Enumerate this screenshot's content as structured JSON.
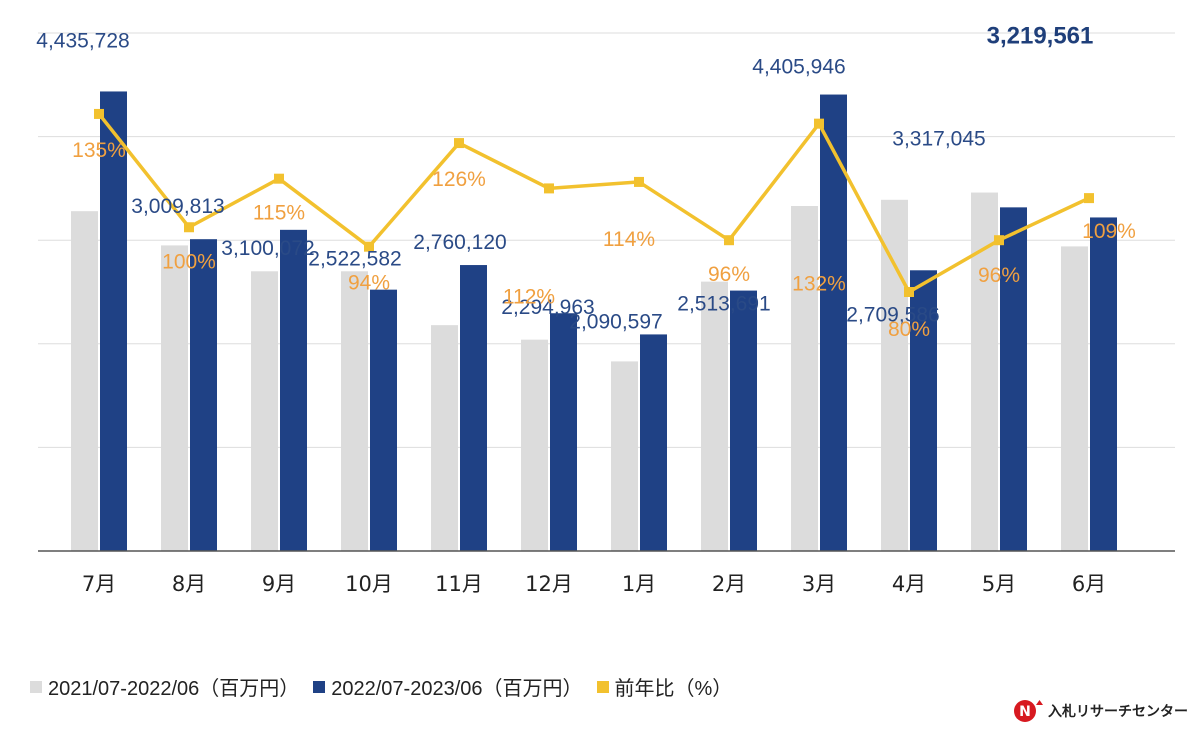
{
  "chart_data": {
    "type": "bar",
    "categories": [
      "7月",
      "8月",
      "9月",
      "10月",
      "11月",
      "12月",
      "1月",
      "2月",
      "3月",
      "4月",
      "5月",
      "6月"
    ],
    "series": [
      {
        "name": "2021/07-2022/06（百万円）",
        "color": "#dcdcdc",
        "values": [
          3280000,
          2950000,
          2700000,
          2700000,
          2180000,
          2040000,
          1830000,
          2600000,
          3330000,
          3390000,
          3460000,
          2940000
        ]
      },
      {
        "name": "2022/07-2023/06（百万円）",
        "color": "#1f4185",
        "values": [
          4435728,
          3009813,
          3100072,
          2522582,
          2760120,
          2294963,
          2090597,
          2513691,
          4405946,
          2709586,
          3317045,
          3219561
        ]
      },
      {
        "name": "前年比（%）",
        "color": "#f2c12e",
        "type": "line",
        "values": [
          135,
          100,
          115,
          94,
          126,
          112,
          114,
          96,
          132,
          80,
          96,
          109
        ]
      }
    ],
    "value_labels": [
      "4,435,728",
      "3,009,813",
      "3,100,072",
      "2,522,582",
      "2,760,120",
      "2,294,963",
      "2,090,597",
      "2,513,691",
      "4,405,946",
      "2,709,586",
      "3,317,045",
      "3,219,561"
    ],
    "pct_labels": [
      "135%",
      "100%",
      "115%",
      "94%",
      "126%",
      "112%",
      "114%",
      "96%",
      "132%",
      "80%",
      "96%",
      "109%"
    ],
    "ylim": [
      0,
      5000000
    ],
    "y2lim": [
      0,
      160
    ],
    "gridlines": true,
    "legend_position": "bottom-left"
  },
  "legend": [
    {
      "label": "2021/07-2022/06（百万円）",
      "color": "#dcdcdc"
    },
    {
      "label": "2022/07-2023/06（百万円）",
      "color": "#1f4185"
    },
    {
      "label": "前年比（%）",
      "color": "#f2c12e"
    }
  ],
  "brand": {
    "name": "入札リサーチセンター",
    "mark_text": "N",
    "mark_color": "#d71920"
  }
}
